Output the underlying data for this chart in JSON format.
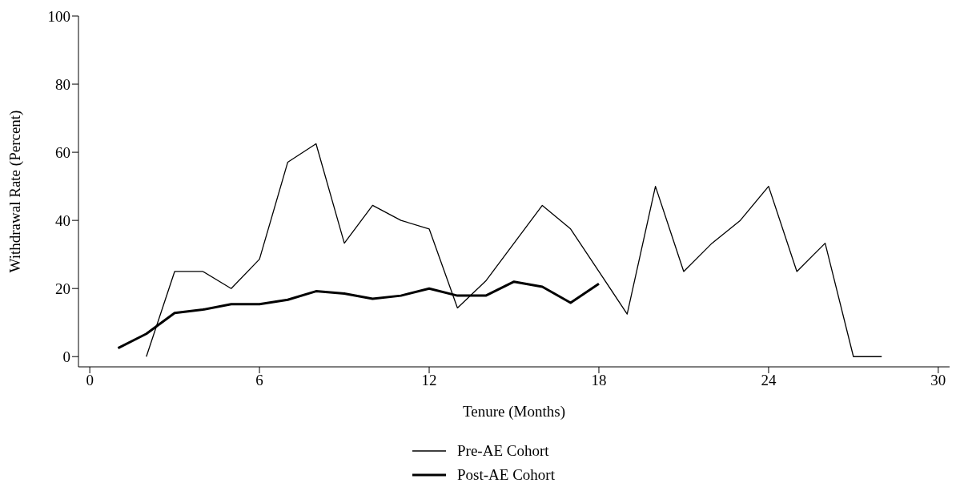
{
  "chart_data": {
    "type": "line",
    "xlabel": "Tenure (Months)",
    "ylabel": "Withdrawal Rate (Percent)",
    "series": [
      {
        "name": "Pre-AE Cohort",
        "color": "#000000",
        "x": [
          2,
          3,
          4,
          5,
          6,
          7,
          8,
          9,
          10,
          11,
          12,
          13,
          14,
          15,
          16,
          17,
          18,
          19,
          20,
          21,
          22,
          23,
          24,
          25,
          26,
          27,
          28
        ],
        "values": [
          0,
          25,
          25,
          20,
          28.6,
          57.1,
          62.5,
          33.3,
          44.4,
          40,
          37.5,
          14.3,
          22.2,
          33.3,
          44.4,
          37.5,
          25,
          12.5,
          50,
          25,
          33.3,
          40,
          50,
          25,
          33.3,
          0,
          0
        ]
      },
      {
        "name": "Post-AE Cohort",
        "color": "#000000",
        "x": [
          1,
          2,
          3,
          4,
          5,
          6,
          7,
          8,
          9,
          10,
          11,
          12,
          13,
          14,
          15,
          16,
          17,
          18
        ],
        "values": [
          2.5,
          6.7,
          12.8,
          13.8,
          15.4,
          15.4,
          16.7,
          19.2,
          18.5,
          17,
          17.9,
          20,
          17.9,
          17.9,
          22,
          20.5,
          15.8,
          21.4
        ]
      }
    ],
    "xlim": [
      -0.4,
      30.4
    ],
    "xticks": [
      0,
      6,
      12,
      18,
      24,
      30
    ],
    "ylim": [
      -3,
      100
    ],
    "yticks": [
      0,
      20,
      40,
      60,
      80,
      100
    ],
    "grid": false,
    "legend": "bottom",
    "marker": "none",
    "line_style": "solid"
  }
}
